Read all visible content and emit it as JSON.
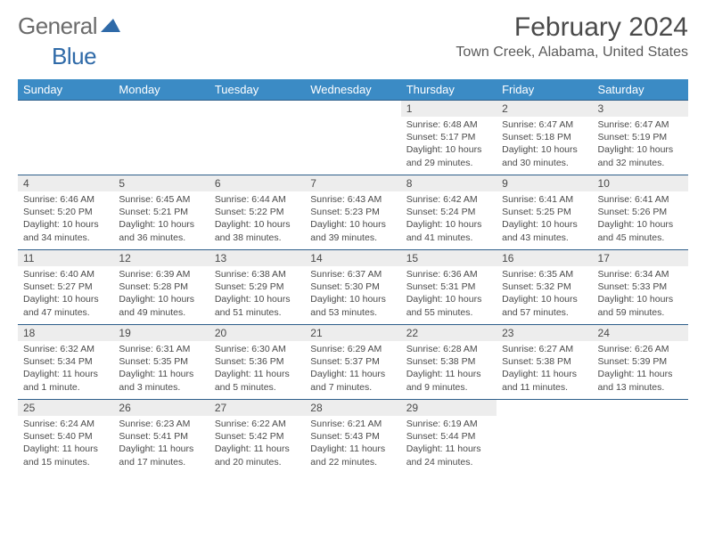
{
  "logo": {
    "part1": "General",
    "part2": "Blue"
  },
  "month_title": "February 2024",
  "location": "Town Creek, Alabama, United States",
  "header_bg": "#3b8bc5",
  "border_color": "#2d5e8a",
  "daynum_bg": "#ededed",
  "text_color": "#4a4a4a",
  "weekdays": [
    "Sunday",
    "Monday",
    "Tuesday",
    "Wednesday",
    "Thursday",
    "Friday",
    "Saturday"
  ],
  "weeks": [
    [
      null,
      null,
      null,
      null,
      {
        "n": "1",
        "sr": "Sunrise: 6:48 AM",
        "ss": "Sunset: 5:17 PM",
        "d1": "Daylight: 10 hours",
        "d2": "and 29 minutes."
      },
      {
        "n": "2",
        "sr": "Sunrise: 6:47 AM",
        "ss": "Sunset: 5:18 PM",
        "d1": "Daylight: 10 hours",
        "d2": "and 30 minutes."
      },
      {
        "n": "3",
        "sr": "Sunrise: 6:47 AM",
        "ss": "Sunset: 5:19 PM",
        "d1": "Daylight: 10 hours",
        "d2": "and 32 minutes."
      }
    ],
    [
      {
        "n": "4",
        "sr": "Sunrise: 6:46 AM",
        "ss": "Sunset: 5:20 PM",
        "d1": "Daylight: 10 hours",
        "d2": "and 34 minutes."
      },
      {
        "n": "5",
        "sr": "Sunrise: 6:45 AM",
        "ss": "Sunset: 5:21 PM",
        "d1": "Daylight: 10 hours",
        "d2": "and 36 minutes."
      },
      {
        "n": "6",
        "sr": "Sunrise: 6:44 AM",
        "ss": "Sunset: 5:22 PM",
        "d1": "Daylight: 10 hours",
        "d2": "and 38 minutes."
      },
      {
        "n": "7",
        "sr": "Sunrise: 6:43 AM",
        "ss": "Sunset: 5:23 PM",
        "d1": "Daylight: 10 hours",
        "d2": "and 39 minutes."
      },
      {
        "n": "8",
        "sr": "Sunrise: 6:42 AM",
        "ss": "Sunset: 5:24 PM",
        "d1": "Daylight: 10 hours",
        "d2": "and 41 minutes."
      },
      {
        "n": "9",
        "sr": "Sunrise: 6:41 AM",
        "ss": "Sunset: 5:25 PM",
        "d1": "Daylight: 10 hours",
        "d2": "and 43 minutes."
      },
      {
        "n": "10",
        "sr": "Sunrise: 6:41 AM",
        "ss": "Sunset: 5:26 PM",
        "d1": "Daylight: 10 hours",
        "d2": "and 45 minutes."
      }
    ],
    [
      {
        "n": "11",
        "sr": "Sunrise: 6:40 AM",
        "ss": "Sunset: 5:27 PM",
        "d1": "Daylight: 10 hours",
        "d2": "and 47 minutes."
      },
      {
        "n": "12",
        "sr": "Sunrise: 6:39 AM",
        "ss": "Sunset: 5:28 PM",
        "d1": "Daylight: 10 hours",
        "d2": "and 49 minutes."
      },
      {
        "n": "13",
        "sr": "Sunrise: 6:38 AM",
        "ss": "Sunset: 5:29 PM",
        "d1": "Daylight: 10 hours",
        "d2": "and 51 minutes."
      },
      {
        "n": "14",
        "sr": "Sunrise: 6:37 AM",
        "ss": "Sunset: 5:30 PM",
        "d1": "Daylight: 10 hours",
        "d2": "and 53 minutes."
      },
      {
        "n": "15",
        "sr": "Sunrise: 6:36 AM",
        "ss": "Sunset: 5:31 PM",
        "d1": "Daylight: 10 hours",
        "d2": "and 55 minutes."
      },
      {
        "n": "16",
        "sr": "Sunrise: 6:35 AM",
        "ss": "Sunset: 5:32 PM",
        "d1": "Daylight: 10 hours",
        "d2": "and 57 minutes."
      },
      {
        "n": "17",
        "sr": "Sunrise: 6:34 AM",
        "ss": "Sunset: 5:33 PM",
        "d1": "Daylight: 10 hours",
        "d2": "and 59 minutes."
      }
    ],
    [
      {
        "n": "18",
        "sr": "Sunrise: 6:32 AM",
        "ss": "Sunset: 5:34 PM",
        "d1": "Daylight: 11 hours",
        "d2": "and 1 minute."
      },
      {
        "n": "19",
        "sr": "Sunrise: 6:31 AM",
        "ss": "Sunset: 5:35 PM",
        "d1": "Daylight: 11 hours",
        "d2": "and 3 minutes."
      },
      {
        "n": "20",
        "sr": "Sunrise: 6:30 AM",
        "ss": "Sunset: 5:36 PM",
        "d1": "Daylight: 11 hours",
        "d2": "and 5 minutes."
      },
      {
        "n": "21",
        "sr": "Sunrise: 6:29 AM",
        "ss": "Sunset: 5:37 PM",
        "d1": "Daylight: 11 hours",
        "d2": "and 7 minutes."
      },
      {
        "n": "22",
        "sr": "Sunrise: 6:28 AM",
        "ss": "Sunset: 5:38 PM",
        "d1": "Daylight: 11 hours",
        "d2": "and 9 minutes."
      },
      {
        "n": "23",
        "sr": "Sunrise: 6:27 AM",
        "ss": "Sunset: 5:38 PM",
        "d1": "Daylight: 11 hours",
        "d2": "and 11 minutes."
      },
      {
        "n": "24",
        "sr": "Sunrise: 6:26 AM",
        "ss": "Sunset: 5:39 PM",
        "d1": "Daylight: 11 hours",
        "d2": "and 13 minutes."
      }
    ],
    [
      {
        "n": "25",
        "sr": "Sunrise: 6:24 AM",
        "ss": "Sunset: 5:40 PM",
        "d1": "Daylight: 11 hours",
        "d2": "and 15 minutes."
      },
      {
        "n": "26",
        "sr": "Sunrise: 6:23 AM",
        "ss": "Sunset: 5:41 PM",
        "d1": "Daylight: 11 hours",
        "d2": "and 17 minutes."
      },
      {
        "n": "27",
        "sr": "Sunrise: 6:22 AM",
        "ss": "Sunset: 5:42 PM",
        "d1": "Daylight: 11 hours",
        "d2": "and 20 minutes."
      },
      {
        "n": "28",
        "sr": "Sunrise: 6:21 AM",
        "ss": "Sunset: 5:43 PM",
        "d1": "Daylight: 11 hours",
        "d2": "and 22 minutes."
      },
      {
        "n": "29",
        "sr": "Sunrise: 6:19 AM",
        "ss": "Sunset: 5:44 PM",
        "d1": "Daylight: 11 hours",
        "d2": "and 24 minutes."
      },
      null,
      null
    ]
  ]
}
